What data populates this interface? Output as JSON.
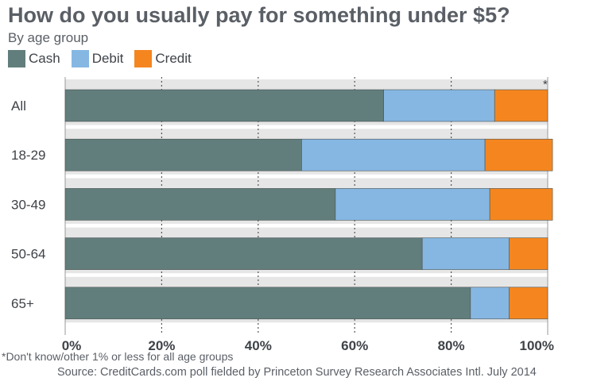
{
  "chart_data": {
    "type": "bar",
    "orientation": "horizontal",
    "stacked": true,
    "title": "How do you usually pay for something under $5?",
    "subtitle": "By age group",
    "categories": [
      "All",
      "18-29",
      "30-49",
      "50-64",
      "65+"
    ],
    "series": [
      {
        "name": "Cash",
        "values": [
          66,
          49,
          56,
          74,
          84
        ],
        "color": "#627e7c"
      },
      {
        "name": "Debit",
        "values": [
          23,
          38,
          32,
          18,
          8
        ],
        "color": "#86b7e3"
      },
      {
        "name": "Credit",
        "values": [
          11,
          14,
          13,
          8,
          8
        ],
        "color": "#f5861f"
      }
    ],
    "xlim": [
      0,
      100
    ],
    "x_ticks": [
      "0%",
      "20%",
      "40%",
      "60%",
      "80%",
      "100%"
    ],
    "grid": "vertical dotted",
    "legend_position": "top-left",
    "annotations": [
      {
        "category": "All",
        "text": "*"
      }
    ]
  },
  "footnote": "*Don't know/other 1% or less for all age groups",
  "source": "Source: CreditCards.com poll fielded by Princeton Survey Research Associates Intl. July 2014"
}
